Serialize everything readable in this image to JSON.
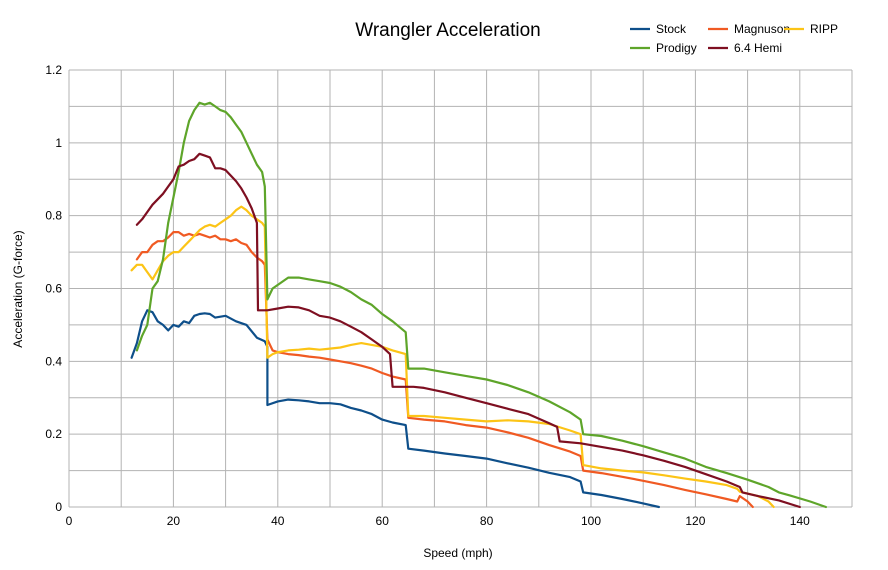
{
  "chart_data": {
    "type": "line",
    "title": "Wrangler Acceleration",
    "xlabel": "Speed (mph)",
    "ylabel": "Acceleration (G-force)",
    "xlim": [
      0,
      150
    ],
    "ylim": [
      0,
      1.2
    ],
    "x_ticks": [
      "0",
      "20",
      "40",
      "60",
      "80",
      "100",
      "120",
      "140"
    ],
    "y_ticks": [
      "0",
      "0.2",
      "0.4",
      "0.6",
      "0.8",
      "1",
      "1.2"
    ],
    "grid": true,
    "legend_position": "top-right",
    "series": [
      {
        "name": "Stock",
        "color": "#0e4f8a",
        "points": [
          [
            12,
            0.41
          ],
          [
            13,
            0.45
          ],
          [
            14,
            0.51
          ],
          [
            15,
            0.54
          ],
          [
            16,
            0.535
          ],
          [
            17,
            0.51
          ],
          [
            18,
            0.5
          ],
          [
            19,
            0.485
          ],
          [
            20,
            0.5
          ],
          [
            21,
            0.495
          ],
          [
            22,
            0.51
          ],
          [
            23,
            0.505
          ],
          [
            24,
            0.525
          ],
          [
            25,
            0.53
          ],
          [
            26,
            0.532
          ],
          [
            27,
            0.53
          ],
          [
            28,
            0.52
          ],
          [
            30,
            0.525
          ],
          [
            32,
            0.51
          ],
          [
            34,
            0.5
          ],
          [
            36,
            0.465
          ],
          [
            37.5,
            0.455
          ],
          [
            38,
            0.44
          ],
          [
            38,
            0.28
          ],
          [
            40,
            0.29
          ],
          [
            42,
            0.295
          ],
          [
            44,
            0.293
          ],
          [
            46,
            0.29
          ],
          [
            48,
            0.285
          ],
          [
            50,
            0.285
          ],
          [
            52,
            0.282
          ],
          [
            54,
            0.272
          ],
          [
            56,
            0.265
          ],
          [
            58,
            0.255
          ],
          [
            60,
            0.24
          ],
          [
            62,
            0.232
          ],
          [
            64.5,
            0.225
          ],
          [
            65,
            0.16
          ],
          [
            68,
            0.155
          ],
          [
            72,
            0.147
          ],
          [
            76,
            0.14
          ],
          [
            80,
            0.133
          ],
          [
            84,
            0.12
          ],
          [
            88,
            0.108
          ],
          [
            92,
            0.094
          ],
          [
            96,
            0.082
          ],
          [
            98,
            0.07
          ],
          [
            98.5,
            0.04
          ],
          [
            102,
            0.033
          ],
          [
            106,
            0.022
          ],
          [
            110,
            0.01
          ],
          [
            113,
            0.0
          ]
        ]
      },
      {
        "name": "Magnuson",
        "color": "#f05a23",
        "points": [
          [
            13,
            0.68
          ],
          [
            14,
            0.7
          ],
          [
            15,
            0.7
          ],
          [
            16,
            0.72
          ],
          [
            17,
            0.73
          ],
          [
            18,
            0.73
          ],
          [
            19,
            0.74
          ],
          [
            20,
            0.755
          ],
          [
            21,
            0.755
          ],
          [
            22,
            0.745
          ],
          [
            23,
            0.75
          ],
          [
            24,
            0.745
          ],
          [
            25,
            0.75
          ],
          [
            26,
            0.745
          ],
          [
            27,
            0.74
          ],
          [
            28,
            0.745
          ],
          [
            29,
            0.735
          ],
          [
            30,
            0.735
          ],
          [
            31,
            0.73
          ],
          [
            32,
            0.735
          ],
          [
            33,
            0.725
          ],
          [
            34,
            0.72
          ],
          [
            35,
            0.7
          ],
          [
            36,
            0.685
          ],
          [
            37,
            0.675
          ],
          [
            37.5,
            0.665
          ],
          [
            38,
            0.46
          ],
          [
            39,
            0.43
          ],
          [
            40,
            0.425
          ],
          [
            42,
            0.42
          ],
          [
            44,
            0.417
          ],
          [
            46,
            0.413
          ],
          [
            48,
            0.41
          ],
          [
            50,
            0.405
          ],
          [
            52,
            0.4
          ],
          [
            54,
            0.395
          ],
          [
            56,
            0.388
          ],
          [
            58,
            0.38
          ],
          [
            60,
            0.368
          ],
          [
            62,
            0.358
          ],
          [
            64.5,
            0.35
          ],
          [
            65,
            0.245
          ],
          [
            68,
            0.24
          ],
          [
            72,
            0.235
          ],
          [
            76,
            0.225
          ],
          [
            80,
            0.218
          ],
          [
            84,
            0.205
          ],
          [
            88,
            0.19
          ],
          [
            92,
            0.17
          ],
          [
            96,
            0.152
          ],
          [
            98,
            0.14
          ],
          [
            98.5,
            0.1
          ],
          [
            102,
            0.093
          ],
          [
            106,
            0.083
          ],
          [
            110,
            0.072
          ],
          [
            114,
            0.06
          ],
          [
            118,
            0.047
          ],
          [
            122,
            0.035
          ],
          [
            126,
            0.022
          ],
          [
            128,
            0.015
          ],
          [
            128.5,
            0.03
          ],
          [
            130,
            0.015
          ],
          [
            131,
            0.0
          ]
        ]
      },
      {
        "name": "RIPP",
        "color": "#fcc416",
        "points": [
          [
            12,
            0.65
          ],
          [
            13,
            0.665
          ],
          [
            14,
            0.665
          ],
          [
            15,
            0.645
          ],
          [
            16,
            0.625
          ],
          [
            17,
            0.65
          ],
          [
            18,
            0.675
          ],
          [
            19,
            0.69
          ],
          [
            20,
            0.7
          ],
          [
            21,
            0.7
          ],
          [
            22,
            0.715
          ],
          [
            23,
            0.73
          ],
          [
            24,
            0.745
          ],
          [
            25,
            0.76
          ],
          [
            26,
            0.77
          ],
          [
            27,
            0.775
          ],
          [
            28,
            0.77
          ],
          [
            29,
            0.78
          ],
          [
            30,
            0.79
          ],
          [
            31,
            0.8
          ],
          [
            32,
            0.815
          ],
          [
            33,
            0.825
          ],
          [
            34,
            0.815
          ],
          [
            35,
            0.8
          ],
          [
            36,
            0.79
          ],
          [
            37,
            0.78
          ],
          [
            37.5,
            0.77
          ],
          [
            38,
            0.41
          ],
          [
            39,
            0.42
          ],
          [
            40,
            0.425
          ],
          [
            42,
            0.43
          ],
          [
            44,
            0.432
          ],
          [
            46,
            0.435
          ],
          [
            48,
            0.432
          ],
          [
            50,
            0.435
          ],
          [
            52,
            0.438
          ],
          [
            54,
            0.445
          ],
          [
            56,
            0.45
          ],
          [
            58,
            0.445
          ],
          [
            60,
            0.44
          ],
          [
            62,
            0.43
          ],
          [
            64.5,
            0.42
          ],
          [
            65,
            0.25
          ],
          [
            68,
            0.25
          ],
          [
            72,
            0.245
          ],
          [
            76,
            0.24
          ],
          [
            80,
            0.235
          ],
          [
            84,
            0.238
          ],
          [
            88,
            0.235
          ],
          [
            92,
            0.228
          ],
          [
            96,
            0.21
          ],
          [
            98,
            0.2
          ],
          [
            98.5,
            0.115
          ],
          [
            102,
            0.106
          ],
          [
            106,
            0.1
          ],
          [
            110,
            0.095
          ],
          [
            114,
            0.087
          ],
          [
            118,
            0.078
          ],
          [
            122,
            0.07
          ],
          [
            126,
            0.06
          ],
          [
            128,
            0.05
          ],
          [
            128.5,
            0.042
          ],
          [
            132,
            0.03
          ],
          [
            134,
            0.015
          ],
          [
            135,
            0.0
          ]
        ]
      },
      {
        "name": "Prodigy",
        "color": "#5ea52a",
        "points": [
          [
            13,
            0.43
          ],
          [
            14,
            0.47
          ],
          [
            15,
            0.5
          ],
          [
            16,
            0.6
          ],
          [
            17,
            0.62
          ],
          [
            18,
            0.68
          ],
          [
            19,
            0.78
          ],
          [
            20,
            0.85
          ],
          [
            21,
            0.92
          ],
          [
            22,
            1.0
          ],
          [
            23,
            1.06
          ],
          [
            24,
            1.09
          ],
          [
            25,
            1.11
          ],
          [
            26,
            1.105
          ],
          [
            27,
            1.11
          ],
          [
            28,
            1.1
          ],
          [
            29,
            1.09
          ],
          [
            30,
            1.085
          ],
          [
            31,
            1.07
          ],
          [
            32,
            1.05
          ],
          [
            33,
            1.03
          ],
          [
            34,
            1.0
          ],
          [
            35,
            0.97
          ],
          [
            36,
            0.94
          ],
          [
            37,
            0.92
          ],
          [
            37.5,
            0.88
          ],
          [
            38,
            0.57
          ],
          [
            39,
            0.6
          ],
          [
            40,
            0.61
          ],
          [
            42,
            0.63
          ],
          [
            44,
            0.63
          ],
          [
            46,
            0.625
          ],
          [
            48,
            0.62
          ],
          [
            50,
            0.615
          ],
          [
            52,
            0.605
          ],
          [
            54,
            0.59
          ],
          [
            56,
            0.57
          ],
          [
            58,
            0.555
          ],
          [
            60,
            0.53
          ],
          [
            62,
            0.51
          ],
          [
            64.5,
            0.48
          ],
          [
            65,
            0.38
          ],
          [
            68,
            0.38
          ],
          [
            72,
            0.37
          ],
          [
            76,
            0.36
          ],
          [
            80,
            0.35
          ],
          [
            84,
            0.335
          ],
          [
            88,
            0.315
          ],
          [
            92,
            0.29
          ],
          [
            96,
            0.26
          ],
          [
            98,
            0.24
          ],
          [
            98.5,
            0.2
          ],
          [
            102,
            0.195
          ],
          [
            106,
            0.182
          ],
          [
            110,
            0.167
          ],
          [
            114,
            0.15
          ],
          [
            118,
            0.133
          ],
          [
            122,
            0.11
          ],
          [
            126,
            0.093
          ],
          [
            130,
            0.075
          ],
          [
            134,
            0.055
          ],
          [
            136,
            0.04
          ],
          [
            138,
            0.032
          ],
          [
            142,
            0.015
          ],
          [
            145,
            0.0
          ]
        ]
      },
      {
        "name": "6.4 Hemi",
        "color": "#7e0f21",
        "points": [
          [
            13,
            0.775
          ],
          [
            14,
            0.79
          ],
          [
            15,
            0.81
          ],
          [
            16,
            0.83
          ],
          [
            17,
            0.845
          ],
          [
            18,
            0.86
          ],
          [
            19,
            0.88
          ],
          [
            20,
            0.9
          ],
          [
            21,
            0.935
          ],
          [
            22,
            0.94
          ],
          [
            23,
            0.95
          ],
          [
            24,
            0.955
          ],
          [
            25,
            0.97
          ],
          [
            26,
            0.965
          ],
          [
            27,
            0.96
          ],
          [
            28,
            0.93
          ],
          [
            29,
            0.93
          ],
          [
            30,
            0.925
          ],
          [
            31,
            0.91
          ],
          [
            32,
            0.895
          ],
          [
            33,
            0.875
          ],
          [
            34,
            0.85
          ],
          [
            35,
            0.82
          ],
          [
            36,
            0.78
          ],
          [
            36.2,
            0.54
          ],
          [
            38,
            0.54
          ],
          [
            40,
            0.545
          ],
          [
            42,
            0.55
          ],
          [
            44,
            0.548
          ],
          [
            46,
            0.54
          ],
          [
            48,
            0.525
          ],
          [
            50,
            0.52
          ],
          [
            52,
            0.51
          ],
          [
            54,
            0.495
          ],
          [
            56,
            0.48
          ],
          [
            58,
            0.46
          ],
          [
            60,
            0.44
          ],
          [
            61.5,
            0.42
          ],
          [
            62,
            0.33
          ],
          [
            64,
            0.33
          ],
          [
            66,
            0.33
          ],
          [
            68,
            0.327
          ],
          [
            72,
            0.315
          ],
          [
            76,
            0.3
          ],
          [
            80,
            0.285
          ],
          [
            84,
            0.27
          ],
          [
            88,
            0.255
          ],
          [
            92,
            0.23
          ],
          [
            93.5,
            0.22
          ],
          [
            94,
            0.18
          ],
          [
            98,
            0.175
          ],
          [
            102,
            0.165
          ],
          [
            106,
            0.155
          ],
          [
            110,
            0.142
          ],
          [
            114,
            0.127
          ],
          [
            118,
            0.11
          ],
          [
            122,
            0.09
          ],
          [
            126,
            0.07
          ],
          [
            128.5,
            0.055
          ],
          [
            129,
            0.04
          ],
          [
            132,
            0.03
          ],
          [
            136,
            0.018
          ],
          [
            140,
            0.0
          ]
        ]
      }
    ]
  }
}
